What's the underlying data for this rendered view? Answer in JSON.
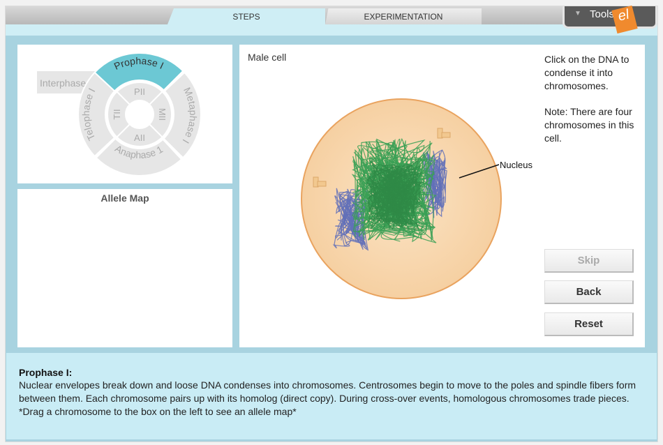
{
  "tabs": [
    {
      "label": "STEPS",
      "active": true
    },
    {
      "label": "EXPERIMENTATION",
      "active": false
    }
  ],
  "tools": {
    "label": "Tools",
    "logo": "el"
  },
  "cycle": {
    "selected": "Prophase I",
    "outer": [
      "Interphase",
      "Prophase I",
      "Metaphase I",
      "Anaphase 1",
      "Telophase I"
    ],
    "inner": [
      "PII",
      "MII",
      "AII",
      "TII"
    ],
    "accent": "#6cc8d4"
  },
  "allele_map": {
    "title": "Allele Map"
  },
  "cell": {
    "title": "Male cell",
    "nucleus_label": "Nucleus",
    "instructions": "Click on the DNA to condense it into chromosomes.",
    "note": "Note: There are four chromosomes in this cell."
  },
  "buttons": {
    "skip": "Skip",
    "back": "Back",
    "reset": "Reset"
  },
  "description": {
    "title": "Prophase I:",
    "text": "Nuclear envelopes break down and loose DNA condenses into chromosomes. Centrosomes begin to move to the poles and spindle fibers form between them. Each chromosome pairs up with its homolog (direct copy). During cross-over events, homologous chromosomes trade pieces. *Drag a chromosome to the box on the left to see an allele map*"
  }
}
